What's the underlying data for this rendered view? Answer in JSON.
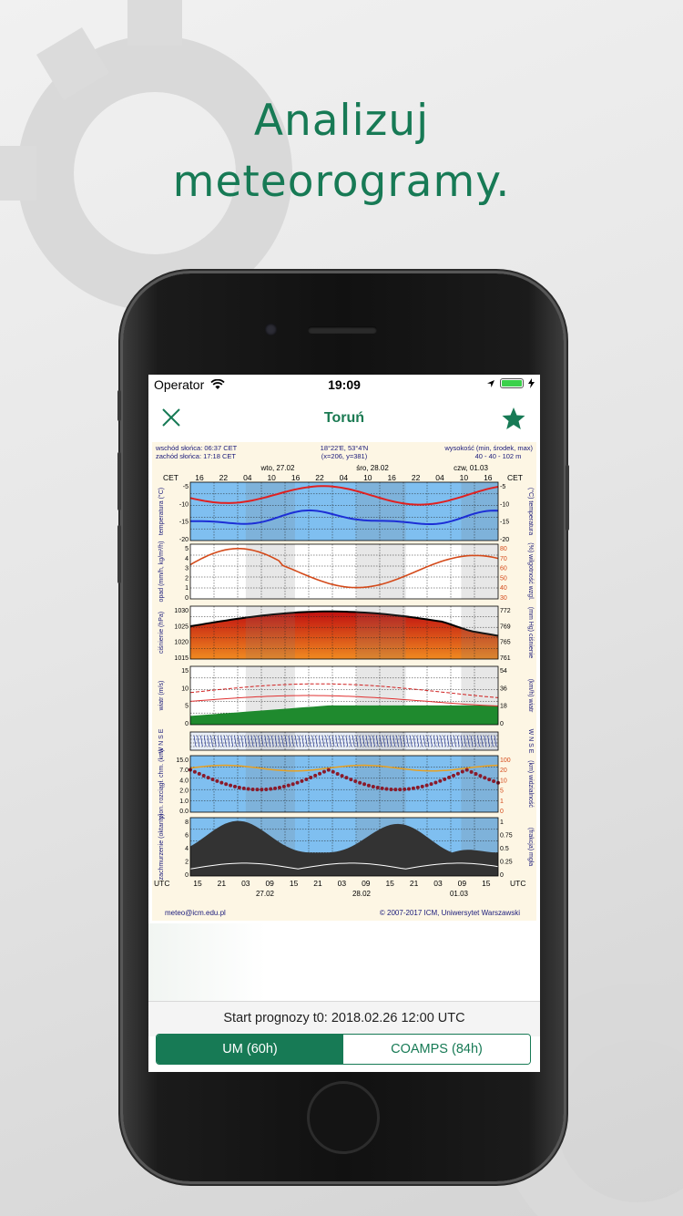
{
  "headline": {
    "line1": "Analizuj",
    "line2": "meteorogramy."
  },
  "status_bar": {
    "carrier": "Operator",
    "time": "19:09"
  },
  "nav": {
    "title": "Toruń",
    "close_icon": "close-icon",
    "favorite_icon": "star-icon"
  },
  "meteogram": {
    "header": {
      "sunrise": "wschód słońca: 06:37 CET",
      "sunset": "zachód słońca: 17:18 CET",
      "coords": "18°22'E, 53°4'N",
      "grid": "(x=206, y=381)",
      "altitude_label": "wysokość (min, środek, max)",
      "altitude_value": "40 - 40 - 102 m",
      "day1": "wto, 27.02",
      "day2": "śro, 28.02",
      "day3": "czw, 01.03"
    },
    "cet_label": "CET",
    "utc_label": "UTC",
    "cet_ticks": [
      "16",
      "22",
      "04",
      "10",
      "16",
      "22",
      "04",
      "10",
      "16",
      "22",
      "04",
      "10",
      "16"
    ],
    "utc_ticks": [
      "15",
      "21",
      "03",
      "09",
      "15",
      "21",
      "03",
      "09",
      "15",
      "21",
      "03",
      "09",
      "15"
    ],
    "utc_dates": [
      "27.02",
      "28.02",
      "01.03"
    ],
    "panels": [
      {
        "left_label": "temperatura (°C)",
        "right_label": "(°C) temperatura",
        "left_ticks": [
          "-5",
          "-10",
          "-15",
          "-20"
        ],
        "right_ticks": [
          "-5",
          "-10",
          "-15",
          "-20"
        ]
      },
      {
        "left_label": "opad (mm/h, kg/m²/h)",
        "right_label": "(%) wilgotność wzgl.",
        "left_ticks": [
          "5",
          "4",
          "3",
          "2",
          "1",
          "0"
        ],
        "right_ticks": [
          "80",
          "70",
          "60",
          "50",
          "40",
          "30"
        ]
      },
      {
        "left_label": "ciśnienie (hPa)",
        "right_label": "(mm Hg) ciśnienie",
        "left_ticks": [
          "1030",
          "1025",
          "1020",
          "1015"
        ],
        "right_ticks": [
          "772",
          "769",
          "765",
          "761"
        ]
      },
      {
        "left_label": "wiatr (m/s)",
        "right_label": "(km/h) wiatr",
        "left_ticks": [
          "15",
          "10",
          "5",
          "0"
        ],
        "right_ticks": [
          "54",
          "36",
          "18",
          "0"
        ]
      },
      {
        "left_label": "W N S E",
        "right_label": "W N S E",
        "left_ticks": [],
        "right_ticks": []
      },
      {
        "left_label": "pion. rozciągł. chm. (km)",
        "right_label": "(km) widzialność",
        "left_ticks": [
          "15.0",
          "7.0",
          "4.0",
          "2.0",
          "1.0",
          "0.0"
        ],
        "right_ticks": [
          "100",
          "20",
          "10",
          "5",
          "1",
          "0"
        ]
      },
      {
        "left_label": "zachmurzenie (oktanty)",
        "right_label": "(frakcja) mgła",
        "left_ticks": [
          "8",
          "6",
          "4",
          "2",
          "0"
        ],
        "right_ticks": [
          "1",
          "0.75",
          "0.5",
          "0.25",
          "0"
        ]
      }
    ],
    "footer": {
      "email": "meteo@icm.edu.pl",
      "copyright": "© 2007-2017 ICM, Uniwersytet Warszawski"
    }
  },
  "forecast_start": "Start prognozy t0: 2018.02.26 12:00 UTC",
  "model_selector": {
    "options": [
      "UM (60h)",
      "COAMPS (84h)"
    ],
    "selected": "UM (60h)"
  },
  "colors": {
    "brand": "#177a55",
    "temp_line": "#e02020",
    "dew_line": "#1c2fd6",
    "humidity_line": "#d44a1a",
    "sky": "#7fbff0"
  }
}
